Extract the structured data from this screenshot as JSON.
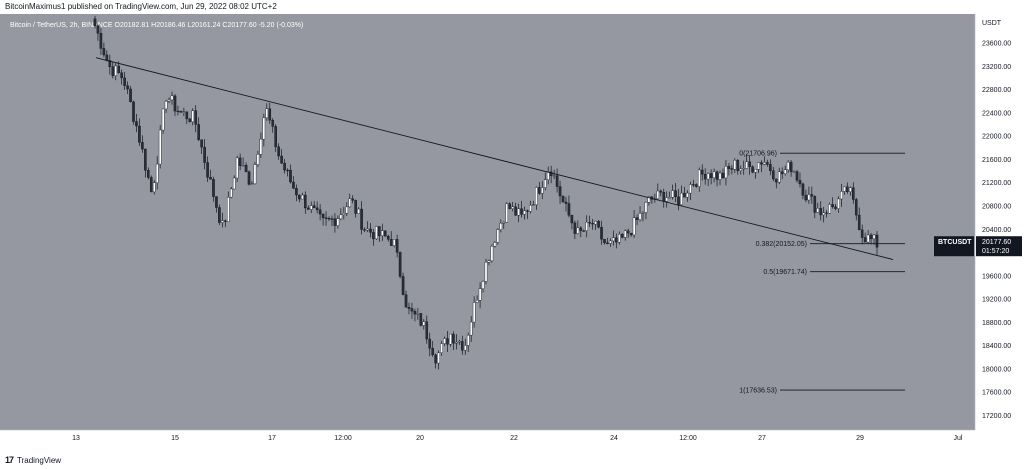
{
  "publish_line": "BitcoinMaximus1 published on TradingView.com, Jun 29, 2022 08:02 UTC+2",
  "footer": {
    "brand": "TradingView"
  },
  "chart_data": {
    "type": "candlestick",
    "legend": {
      "symbol": "Bitcoin / TetherUS, 2h, BINANCE",
      "open": "20182.81",
      "high": "20186.46",
      "low": "20161.24",
      "close": "20177.60",
      "change": "-5.20 (-0.03%)"
    },
    "y_axis": {
      "unit": "USDT",
      "ticks": [
        23600,
        23200,
        22800,
        22400,
        22000,
        21600,
        21200,
        20800,
        20400,
        19600,
        19200,
        18800,
        18400,
        18000,
        17600,
        17200
      ],
      "range": [
        16950,
        24100
      ]
    },
    "x_axis": {
      "ticks": [
        "13",
        "15",
        "17",
        "12:00",
        "20",
        "22",
        "24",
        "12:00",
        "27",
        "29",
        "Jul"
      ]
    },
    "price_label": {
      "symbol": "BTCUSDT",
      "price": "20177.60",
      "countdown": "01:57:20"
    },
    "fib_levels": [
      {
        "label": "0(21706.96)",
        "value": 21706.96
      },
      {
        "label": "0.382(20152.05)",
        "value": 20152.05
      },
      {
        "label": "0.5(19671.74)",
        "value": 19671.74
      },
      {
        "label": "1(17636.53)",
        "value": 17636.53
      }
    ],
    "trendline": {
      "start_price": 23350,
      "end_price": 19880
    },
    "anchors": [
      23900,
      23200,
      23000,
      22100,
      21000,
      22700,
      22400,
      22300,
      21300,
      20400,
      21600,
      21200,
      22500,
      21600,
      21100,
      20800,
      20500,
      20600,
      20900,
      20400,
      20300,
      20200,
      19000,
      18800,
      18200,
      18600,
      18400,
      19400,
      20200,
      20800,
      20600,
      21000,
      21500,
      20800,
      20300,
      20500,
      20100,
      20200,
      20500,
      20900,
      21000,
      20900,
      21200,
      21400,
      21300,
      21500,
      21450,
      21600,
      21300,
      21500,
      21000,
      20700,
      20800,
      21100,
      20300,
      20150
    ],
    "candle_count": 265,
    "colors": {
      "bg": "#9598a1",
      "up": "#ffffff",
      "down": "#2a2e39",
      "line": "#131722",
      "price_tag": "#131722"
    }
  }
}
